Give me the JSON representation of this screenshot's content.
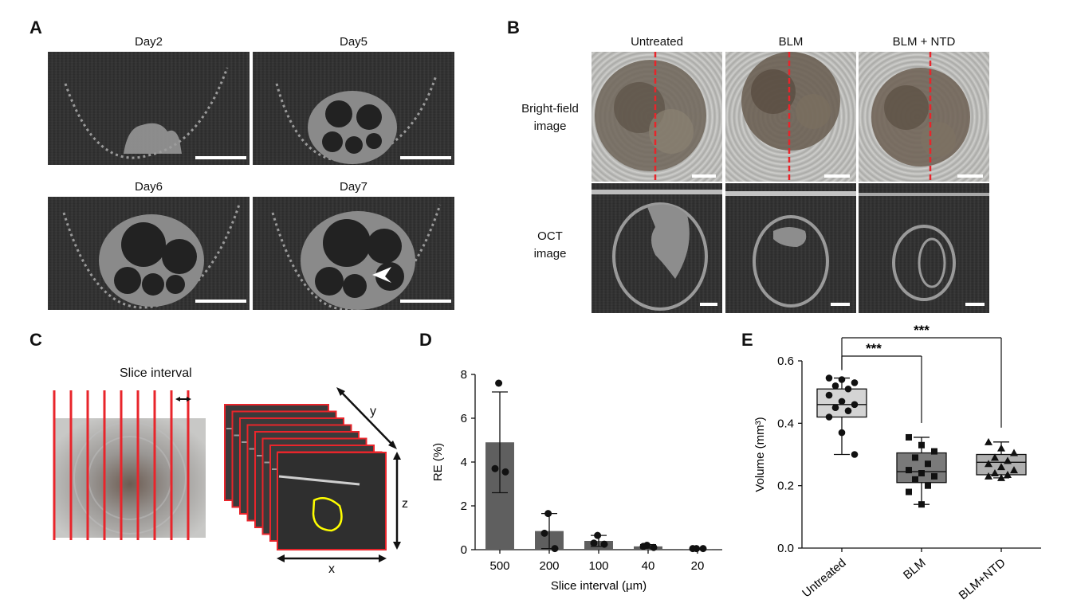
{
  "panels": {
    "A": {
      "label": "A",
      "images": [
        {
          "title": "Day2"
        },
        {
          "title": "Day5"
        },
        {
          "title": "Day6"
        },
        {
          "title": "Day7"
        }
      ]
    },
    "B": {
      "label": "B",
      "columns": [
        "Untreated",
        "BLM",
        "BLM + NTD"
      ],
      "rows": [
        {
          "label_lines": [
            "Bright-field",
            "image"
          ]
        },
        {
          "label_lines": [
            "OCT",
            "image"
          ]
        }
      ],
      "marker_color": "#e8252b"
    },
    "C": {
      "label": "C",
      "slice_interval_label": "Slice interval",
      "axis_x": "x",
      "axis_y": "y",
      "axis_z": "z",
      "slice_color": "#e8252b",
      "outline_color": "#ffff00"
    },
    "D": {
      "label": "D",
      "ylabel": "RE (%)",
      "xlabel": "Slice interval (µm)"
    },
    "E": {
      "label": "E",
      "ylabel": "Volume (mm³)",
      "significance": [
        "***",
        "***"
      ]
    }
  },
  "chart_data": [
    {
      "id": "D",
      "type": "bar",
      "categories": [
        "500",
        "200",
        "100",
        "40",
        "20"
      ],
      "values": [
        4.9,
        0.85,
        0.4,
        0.15,
        0.03
      ],
      "error": [
        2.3,
        0.8,
        0.25,
        0.08,
        0.03
      ],
      "points": [
        [
          7.6,
          3.7,
          3.55
        ],
        [
          1.65,
          0.75,
          0.05
        ],
        [
          0.65,
          0.3,
          0.25
        ],
        [
          0.2,
          0.15,
          0.1
        ],
        [
          0.05,
          0.05,
          0.05
        ]
      ],
      "xlabel": "Slice interval (µm)",
      "ylabel": "RE (%)",
      "ylim": [
        0,
        8
      ],
      "yticks": [
        0,
        2,
        4,
        6,
        8
      ],
      "bar_color": "#5f5f5f"
    },
    {
      "id": "E",
      "type": "box",
      "categories": [
        "Untreated",
        "BLM",
        "BLM+NTD"
      ],
      "boxes": [
        {
          "min": 0.3,
          "q1": 0.42,
          "median": 0.46,
          "q3": 0.51,
          "max": 0.545,
          "color": "#d4d4d4",
          "marker": "circle",
          "points": [
            0.545,
            0.54,
            0.53,
            0.52,
            0.51,
            0.49,
            0.47,
            0.46,
            0.45,
            0.44,
            0.42,
            0.37,
            0.3
          ]
        },
        {
          "min": 0.14,
          "q1": 0.21,
          "median": 0.245,
          "q3": 0.305,
          "max": 0.355,
          "color": "#7a7a7a",
          "marker": "square",
          "points": [
            0.355,
            0.33,
            0.31,
            0.29,
            0.27,
            0.25,
            0.24,
            0.23,
            0.22,
            0.2,
            0.18,
            0.14
          ]
        },
        {
          "min": 0.225,
          "q1": 0.235,
          "median": 0.275,
          "q3": 0.3,
          "max": 0.34,
          "color": "#b0b0b0",
          "marker": "triangle",
          "points": [
            0.34,
            0.32,
            0.305,
            0.29,
            0.28,
            0.27,
            0.26,
            0.25,
            0.24,
            0.235,
            0.23,
            0.225
          ]
        }
      ],
      "ylabel": "Volume (mm³)",
      "ylim": [
        0,
        0.6
      ],
      "yticks": [
        0.0,
        0.2,
        0.4,
        0.6
      ],
      "significance": [
        {
          "from": "Untreated",
          "to": "BLM",
          "label": "***"
        },
        {
          "from": "Untreated",
          "to": "BLM+NTD",
          "label": "***"
        }
      ]
    }
  ]
}
